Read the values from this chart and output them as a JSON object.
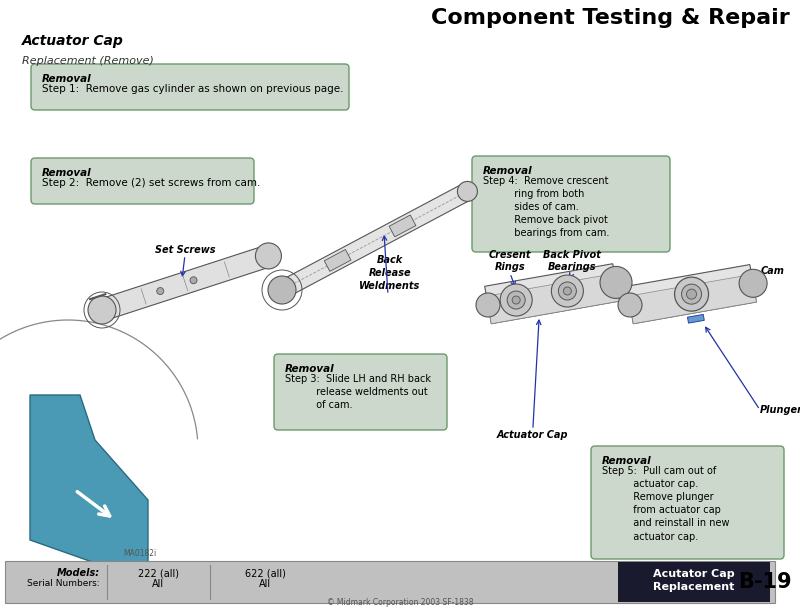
{
  "title": "Component Testing & Repair",
  "subtitle": "Actuator Cap",
  "section_label": "Replacement (Remove)",
  "bg_color": "#ffffff",
  "box_bg_color": "#ccd8cc",
  "box_border_color": "#6a9a6a",
  "footer_bg": "#c0c0c0",
  "footer_dark_bg": "#1a1a2e",
  "footer_text_color": "#ffffff",
  "page_number": "B-19",
  "step1_title": "Removal",
  "step1_text": "Step 1:  Remove gas cylinder as shown on previous page.",
  "step2_title": "Removal",
  "step2_text": "Step 2:  Remove (2) set screws from cam.",
  "step3_title": "Removal",
  "step3_text": "Step 3:  Slide LH and RH back\n          release weldments out\n          of cam.",
  "step4_title": "Removal",
  "step4_text": "Step 4:  Remove crescent\n          ring from both\n          sides of cam.\n          Remove back pivot\n          bearings from cam.",
  "step5_title": "Removal",
  "step5_text": "Step 5:  Pull cam out of\n          actuator cap.\n          Remove plunger\n          from actuator cap\n          and reinstall in new\n          actuator cap.",
  "label_set_screws": "Set Screws",
  "label_back_release": "Back\nRelease\nWeldments",
  "label_crescent_rings": "Cresent\nRings",
  "label_back_pivot": "Back Pivot\nBearings",
  "label_cam": "Cam",
  "label_plunger": "Plunger",
  "label_actuator_cap": "Actuator Cap",
  "label_ma": "MA0182i",
  "models_label": "Models:",
  "serial_label": "Serial Numbers:",
  "model1_name": "222 (all)",
  "model1_serial": "All",
  "model2_name": "622 (all)",
  "model2_serial": "All",
  "footer_title_line1": "Acutator Cap",
  "footer_title_line2": "Replacement",
  "copyright": "© Midmark Corporation 2003 SF-1838",
  "diagram_line_color": "#555555",
  "diagram_fill_light": "#e8e8e8",
  "diagram_fill_mid": "#d0d0d0",
  "diagram_fill_dark": "#b0b0b0",
  "blue_color": "#4a9ab5",
  "arrow_color": "#2233aa"
}
